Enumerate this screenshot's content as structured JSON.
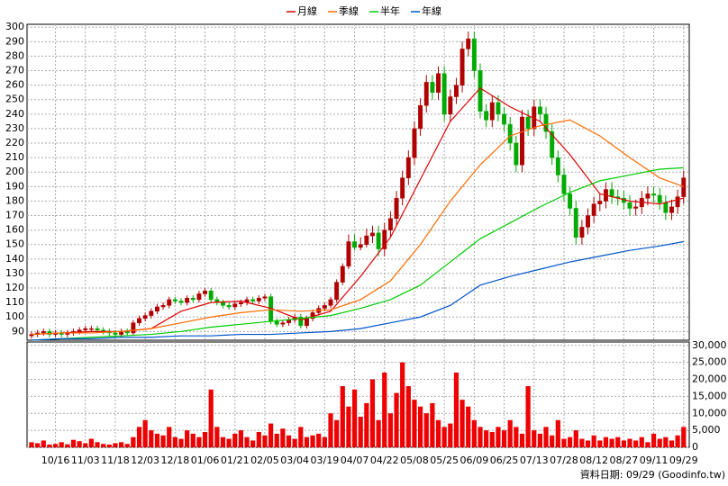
{
  "chart_data": {
    "type": "candlestick",
    "source": "資料日期: 09/29 (Goodinfo.tw)",
    "categories": [
      null,
      null,
      null,
      null,
      "10/16",
      null,
      null,
      null,
      null,
      "11/03",
      null,
      null,
      null,
      null,
      "11/18",
      null,
      null,
      null,
      null,
      "12/03",
      null,
      null,
      null,
      null,
      "12/18",
      null,
      null,
      null,
      null,
      "01/06",
      null,
      null,
      null,
      null,
      "01/21",
      null,
      null,
      null,
      null,
      "02/05",
      null,
      null,
      null,
      null,
      "03/04",
      null,
      null,
      null,
      null,
      "03/19",
      null,
      null,
      null,
      null,
      "04/07",
      null,
      null,
      null,
      null,
      "04/22",
      null,
      null,
      null,
      null,
      "05/08",
      null,
      null,
      null,
      null,
      "05/25",
      null,
      null,
      null,
      null,
      "06/09",
      null,
      null,
      null,
      null,
      "06/25",
      null,
      null,
      null,
      null,
      "07/13",
      null,
      null,
      null,
      null,
      "07/28",
      null,
      null,
      null,
      null,
      "08/12",
      null,
      null,
      null,
      null,
      "08/27",
      null,
      null,
      null,
      null,
      "09/11",
      null,
      null,
      null,
      null,
      "09/29"
    ],
    "open": [
      87,
      88,
      89,
      90,
      88,
      89,
      88,
      89,
      90,
      91,
      92,
      92,
      91,
      90,
      89,
      88,
      90,
      89,
      96,
      99,
      101,
      104,
      107,
      108,
      112,
      111,
      110,
      113,
      112,
      116,
      118,
      112,
      110,
      108,
      107,
      109,
      110,
      112,
      111,
      113,
      114,
      97,
      95,
      96,
      98,
      100,
      94,
      99,
      103,
      106,
      108,
      112,
      124,
      135,
      152,
      148,
      150,
      156,
      158,
      147,
      160,
      168,
      182,
      196,
      210,
      230,
      246,
      262,
      255,
      268,
      240,
      252,
      260,
      285,
      292,
      270,
      242,
      236,
      248,
      240,
      233,
      220,
      205,
      238,
      230,
      245,
      240,
      228,
      210,
      198,
      185,
      175,
      155,
      162,
      170,
      178,
      180,
      188,
      183,
      182,
      179,
      175,
      176,
      182,
      185,
      184,
      179,
      172,
      176,
      183
    ],
    "high": [
      90,
      91,
      92,
      92,
      91,
      91,
      91,
      92,
      93,
      94,
      94,
      94,
      93,
      92,
      91,
      92,
      92,
      98,
      101,
      103,
      106,
      109,
      110,
      114,
      114,
      113,
      115,
      115,
      118,
      120,
      120,
      114,
      112,
      110,
      111,
      112,
      114,
      114,
      115,
      116,
      116,
      99,
      98,
      100,
      102,
      102,
      101,
      105,
      108,
      110,
      114,
      126,
      137,
      157,
      157,
      155,
      161,
      163,
      163,
      165,
      173,
      187,
      201,
      215,
      235,
      251,
      267,
      267,
      273,
      273,
      257,
      265,
      290,
      297,
      297,
      275,
      247,
      253,
      253,
      245,
      238,
      225,
      243,
      243,
      250,
      250,
      245,
      233,
      215,
      203,
      190,
      180,
      167,
      175,
      183,
      185,
      193,
      193,
      188,
      187,
      184,
      181,
      187,
      190,
      190,
      189,
      184,
      181,
      188,
      201
    ],
    "low": [
      85,
      86,
      87,
      86,
      86,
      86,
      86,
      87,
      88,
      89,
      90,
      89,
      88,
      87,
      86,
      86,
      87,
      87,
      94,
      97,
      99,
      102,
      105,
      106,
      109,
      108,
      108,
      110,
      110,
      114,
      110,
      108,
      106,
      105,
      105,
      107,
      108,
      109,
      109,
      111,
      95,
      93,
      93,
      94,
      96,
      92,
      92,
      97,
      101,
      104,
      106,
      110,
      122,
      133,
      146,
      146,
      148,
      151,
      142,
      142,
      155,
      163,
      177,
      191,
      205,
      225,
      241,
      250,
      250,
      235,
      235,
      247,
      255,
      280,
      265,
      237,
      231,
      231,
      235,
      228,
      215,
      200,
      200,
      225,
      225,
      235,
      223,
      205,
      193,
      180,
      170,
      150,
      150,
      157,
      165,
      173,
      175,
      178,
      177,
      174,
      170,
      170,
      171,
      177,
      179,
      174,
      167,
      167,
      171,
      178
    ],
    "close": [
      88,
      89,
      90,
      88,
      89,
      88,
      89,
      90,
      91,
      92,
      92,
      91,
      90,
      89,
      88,
      90,
      89,
      96,
      99,
      101,
      104,
      107,
      108,
      112,
      111,
      110,
      113,
      112,
      116,
      118,
      112,
      110,
      108,
      107,
      109,
      110,
      112,
      111,
      113,
      114,
      97,
      95,
      96,
      98,
      100,
      94,
      99,
      103,
      106,
      108,
      112,
      124,
      135,
      152,
      148,
      150,
      156,
      158,
      147,
      160,
      168,
      182,
      196,
      210,
      230,
      246,
      262,
      255,
      268,
      240,
      252,
      260,
      285,
      292,
      270,
      242,
      236,
      248,
      240,
      233,
      220,
      205,
      238,
      230,
      245,
      240,
      228,
      210,
      198,
      185,
      175,
      155,
      162,
      170,
      178,
      180,
      188,
      183,
      182,
      179,
      175,
      176,
      182,
      185,
      184,
      179,
      172,
      176,
      183,
      196
    ],
    "volume": [
      1500,
      1200,
      2000,
      800,
      1000,
      1500,
      900,
      2200,
      1800,
      1200,
      2500,
      1500,
      1000,
      800,
      1200,
      1500,
      1000,
      3000,
      6000,
      8000,
      5000,
      4000,
      3500,
      6000,
      3000,
      2500,
      5000,
      4000,
      3000,
      4500,
      17000,
      6000,
      3000,
      2500,
      4000,
      5000,
      3000,
      2000,
      4500,
      3500,
      7000,
      4000,
      5500,
      3500,
      2500,
      6000,
      3000,
      3500,
      4000,
      3000,
      10000,
      8000,
      18000,
      12000,
      17000,
      9000,
      13000,
      20000,
      8000,
      22000,
      10000,
      16000,
      25000,
      18000,
      14000,
      12000,
      10000,
      13000,
      8000,
      6000,
      7000,
      22000,
      14000,
      12000,
      8000,
      6000,
      5000,
      4500,
      6000,
      5000,
      8000,
      6000,
      4000,
      18000,
      5000,
      4000,
      6000,
      3500,
      8000,
      2500,
      3000,
      5000,
      2500,
      2000,
      3500,
      2000,
      3000,
      2500,
      3000,
      2000,
      2500,
      2000,
      3000,
      1500,
      4000,
      2500,
      3000,
      2000,
      3500,
      6000
    ],
    "series": [
      {
        "name": "月線",
        "color": "#e00000",
        "x": [
          0,
          5,
          10,
          15,
          20,
          25,
          30,
          35,
          40,
          45,
          50,
          55,
          60,
          65,
          70,
          75,
          80,
          85,
          90,
          95,
          100,
          105,
          109
        ],
        "values": [
          88,
          89,
          90,
          90,
          92,
          104,
          110,
          111,
          106,
          98,
          104,
          128,
          155,
          195,
          235,
          258,
          245,
          235,
          212,
          185,
          180,
          178,
          182
        ]
      },
      {
        "name": "季線",
        "color": "#ff6a00",
        "x": [
          0,
          5,
          10,
          15,
          20,
          25,
          30,
          35,
          40,
          45,
          50,
          55,
          60,
          65,
          70,
          75,
          80,
          85,
          90,
          95,
          100,
          105,
          109
        ],
        "values": [
          88,
          89,
          89,
          90,
          92,
          96,
          100,
          103,
          105,
          104,
          105,
          112,
          125,
          150,
          180,
          205,
          225,
          232,
          236,
          225,
          210,
          196,
          190
        ]
      },
      {
        "name": "半年",
        "color": "#00cc00",
        "x": [
          0,
          5,
          10,
          15,
          20,
          25,
          30,
          35,
          40,
          45,
          50,
          55,
          60,
          65,
          70,
          75,
          80,
          85,
          90,
          95,
          100,
          105,
          109
        ],
        "values": [
          84,
          85,
          86,
          87,
          88,
          90,
          93,
          95,
          97,
          99,
          101,
          106,
          112,
          122,
          138,
          154,
          165,
          176,
          186,
          194,
          198,
          202,
          203
        ]
      },
      {
        "name": "年線",
        "color": "#0055cc",
        "x": [
          0,
          5,
          10,
          15,
          20,
          25,
          30,
          35,
          40,
          45,
          50,
          55,
          60,
          65,
          70,
          75,
          80,
          85,
          90,
          95,
          100,
          105,
          109
        ],
        "values": [
          84,
          85,
          85,
          86,
          86,
          87,
          87,
          88,
          88,
          89,
          90,
          92,
          96,
          100,
          108,
          122,
          128,
          133,
          138,
          142,
          146,
          149,
          152
        ]
      }
    ],
    "up_color": "#b00000",
    "down_color": "#00aa00",
    "volume_color": "#ee0000",
    "ylim": [
      84,
      302
    ],
    "yticks": [
      90,
      100,
      110,
      120,
      130,
      140,
      150,
      160,
      170,
      180,
      190,
      200,
      210,
      220,
      230,
      240,
      250,
      260,
      270,
      280,
      290,
      300
    ],
    "volume_ylim": [
      0,
      31000
    ],
    "volume_yticks": [
      0,
      {
        "value": 5000,
        "label": "5,000"
      },
      {
        "value": 10000,
        "label": "10,000"
      },
      {
        "value": 15000,
        "label": "15,000"
      },
      {
        "value": 20000,
        "label": "20,000"
      },
      {
        "value": 25000,
        "label": "25,000"
      },
      {
        "value": 30000,
        "label": "30,000"
      }
    ],
    "grid": true
  }
}
